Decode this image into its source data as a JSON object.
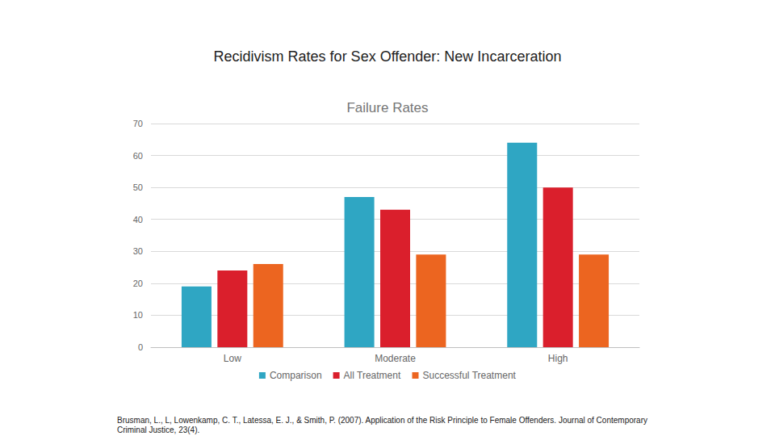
{
  "chart_data": {
    "type": "bar",
    "title": "Recidivism Rates for Sex Offender: New Incarceration",
    "subtitle": "Failure Rates",
    "annotations": [
      "Brusman, L., L, Lowenkamp, C. T., Latessa, E. J., & Smith, P. (2007). Application of the Risk Principle to Female Offenders. Journal of Contemporary Criminal Justice, 23(4)."
    ],
    "categories": [
      "Low",
      "Moderate",
      "High"
    ],
    "series": [
      {
        "name": "Comparison",
        "color": "#2fa6c3",
        "values": [
          19,
          47,
          64
        ]
      },
      {
        "name": "All Treatment",
        "color": "#da1f2c",
        "values": [
          24,
          43,
          50
        ]
      },
      {
        "name": "Successful Treatment",
        "color": "#ec6520",
        "values": [
          26,
          29,
          29
        ]
      }
    ],
    "ylim": [
      0,
      70
    ],
    "yticks": [
      0,
      10,
      20,
      30,
      40,
      50,
      60,
      70
    ],
    "grid": true,
    "legend": "bottom"
  }
}
